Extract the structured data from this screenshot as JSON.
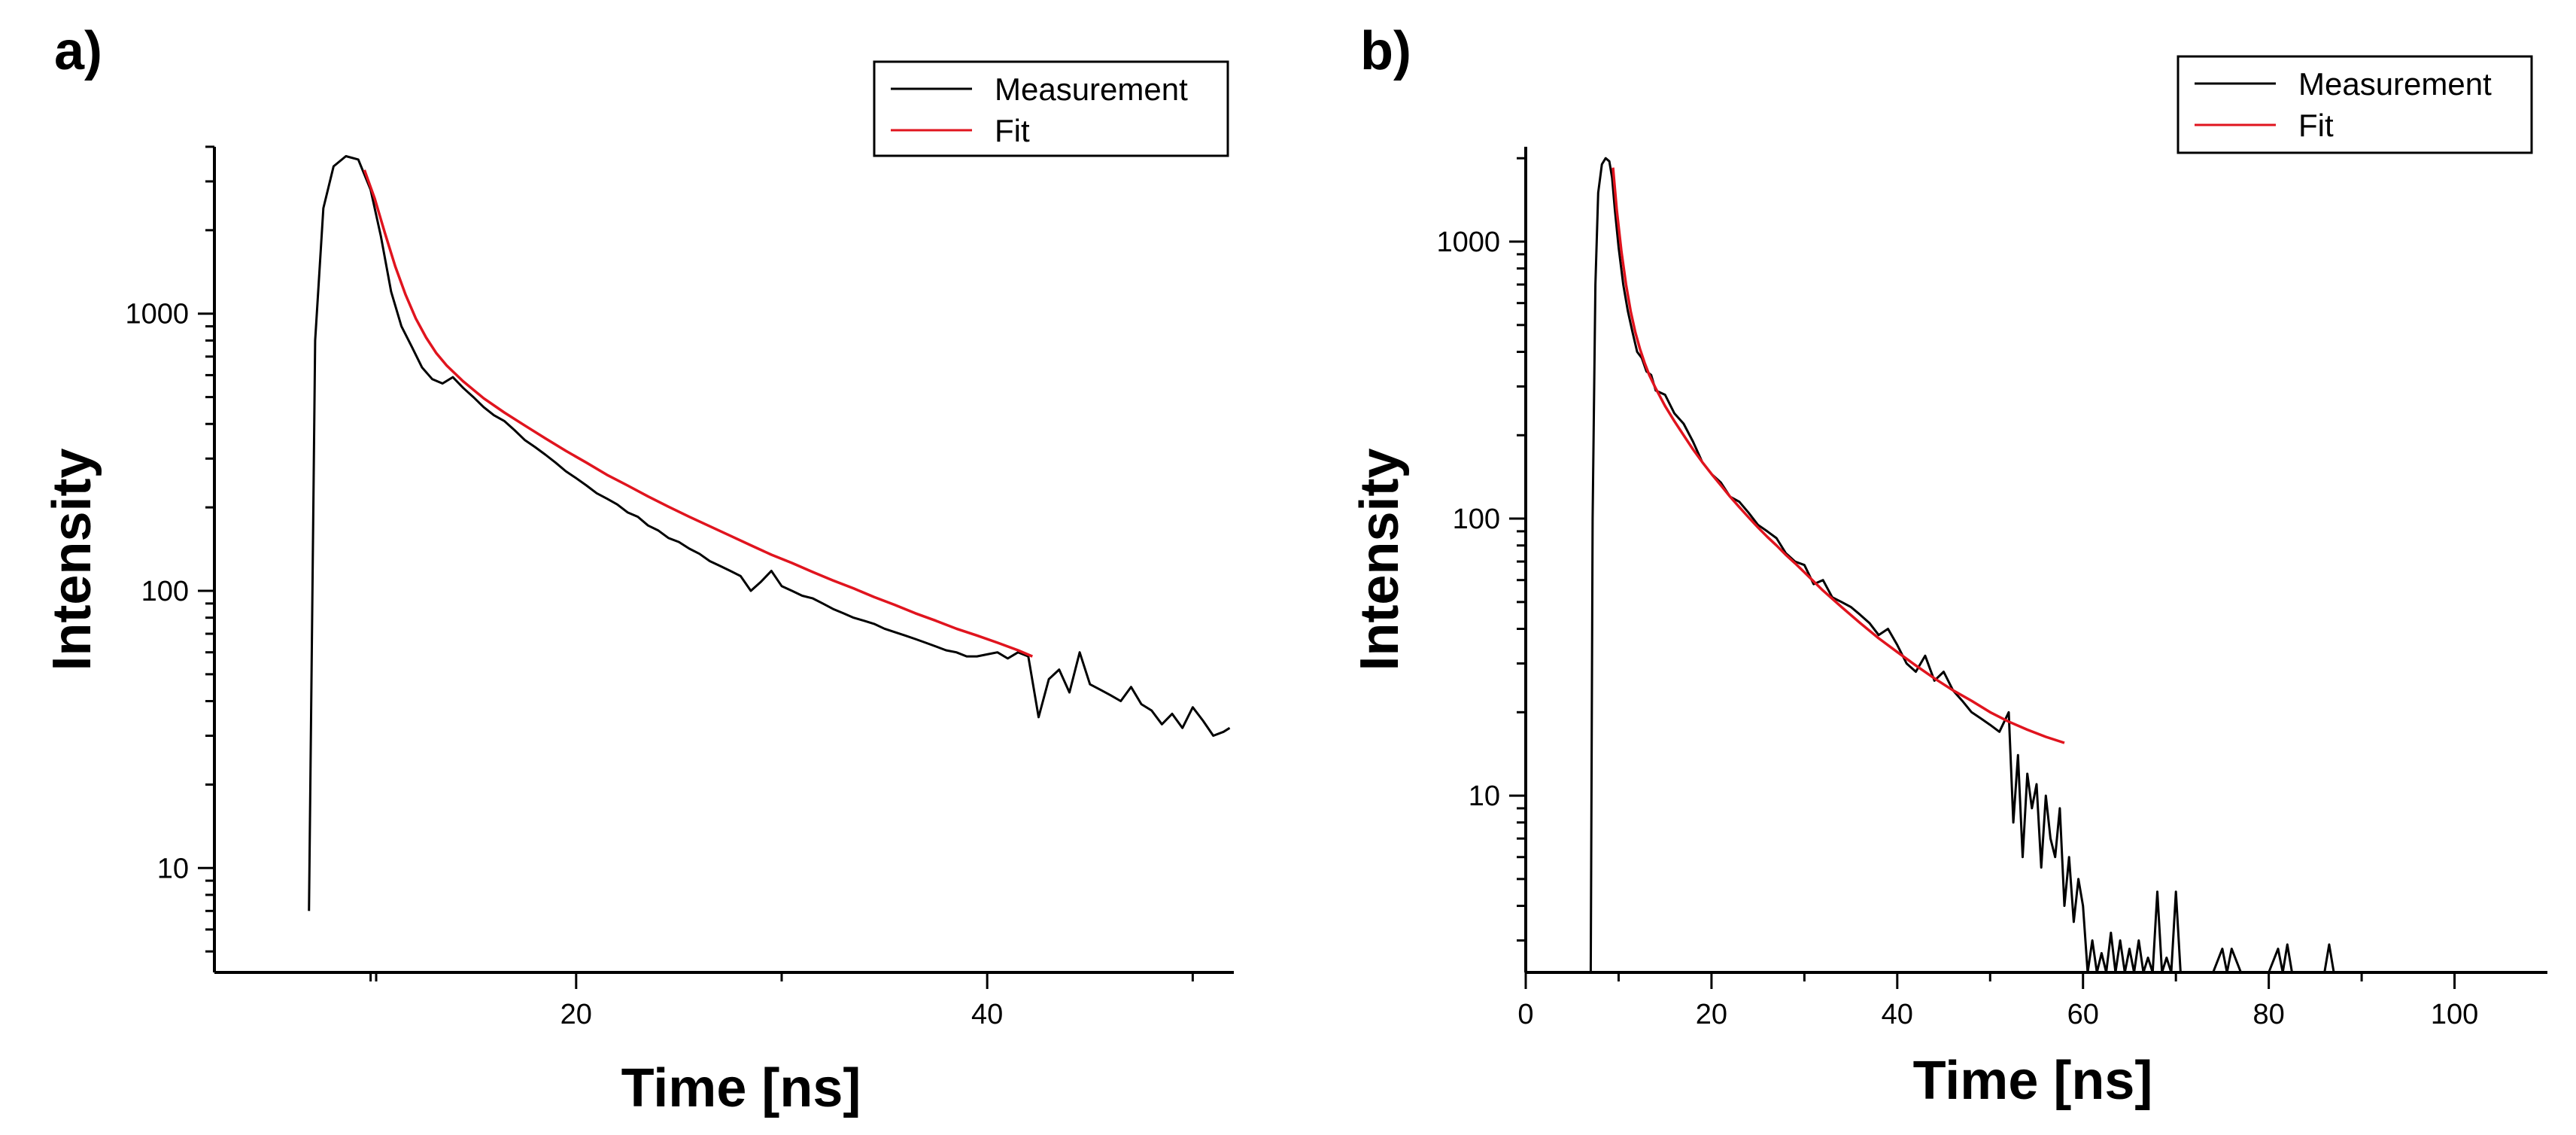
{
  "chart_data": [
    {
      "type": "line",
      "panel_label": "a)",
      "xlabel": "Time [ns]",
      "ylabel": "Intensity",
      "xscale": "linear",
      "yscale": "log",
      "xlim": [
        2.4,
        52
      ],
      "ylim": [
        4.2,
        4000
      ],
      "xticks_major": [
        20,
        40
      ],
      "xticks_minor": [
        10,
        30,
        50
      ],
      "yticks": [
        10,
        100,
        1000
      ],
      "legend": {
        "position": "top-right",
        "entries": [
          "Measurement",
          "Fit"
        ]
      },
      "series": [
        {
          "name": "Measurement",
          "color": "#000000",
          "x": [
            7.0,
            7.3,
            7.7,
            8.2,
            8.8,
            9.4,
            10.0,
            10.5,
            11.0,
            11.5,
            12.0,
            12.5,
            13.0,
            13.5,
            14.0,
            14.5,
            15.0,
            15.5,
            16.0,
            16.5,
            17.0,
            17.5,
            18.0,
            18.5,
            19.0,
            19.5,
            20.0,
            20.5,
            21.0,
            21.5,
            22.0,
            22.5,
            23.0,
            23.5,
            24.0,
            24.5,
            25.0,
            25.5,
            26.0,
            26.5,
            27.0,
            27.5,
            28.0,
            28.5,
            29.0,
            29.5,
            30.0,
            30.5,
            31.0,
            31.5,
            32.0,
            32.5,
            33.0,
            33.5,
            34.0,
            34.5,
            35.0,
            35.5,
            36.0,
            36.5,
            37.0,
            37.5,
            38.0,
            38.5,
            39.0,
            39.5,
            40.0,
            40.5,
            41.0,
            41.5,
            42.0,
            42.5,
            43.0,
            43.5,
            44.0,
            44.5,
            45.0,
            45.5,
            46.0,
            46.5,
            47.0,
            47.5,
            48.0,
            48.5,
            49.0,
            49.5,
            50.0,
            50.5,
            51.0,
            51.5,
            51.8
          ],
          "y": [
            7,
            800,
            2400,
            3400,
            3700,
            3600,
            2800,
            1900,
            1200,
            900,
            760,
            640,
            580,
            560,
            590,
            540,
            500,
            460,
            430,
            410,
            380,
            350,
            330,
            310,
            290,
            270,
            255,
            240,
            225,
            215,
            205,
            192,
            185,
            172,
            165,
            155,
            150,
            142,
            136,
            128,
            123,
            118,
            113,
            100,
            108,
            118,
            104,
            100,
            96,
            94,
            90,
            86,
            83,
            80,
            78,
            76,
            73,
            71,
            69,
            67,
            65,
            63,
            61,
            60,
            58,
            58,
            59,
            60,
            57,
            60,
            58,
            35,
            48,
            52,
            43,
            60,
            46,
            44,
            42,
            40,
            45,
            39,
            37,
            33,
            36,
            32,
            38,
            34,
            30,
            31,
            32
          ]
        },
        {
          "name": "Fit",
          "color": "#e0141e",
          "x": [
            9.7,
            10.2,
            10.7,
            11.2,
            11.7,
            12.2,
            12.7,
            13.2,
            13.7,
            14.5,
            15.5,
            16.5,
            17.5,
            18.5,
            19.5,
            20.5,
            21.5,
            22.5,
            23.5,
            24.5,
            25.5,
            26.5,
            27.5,
            28.5,
            29.5,
            30.5,
            31.5,
            32.5,
            33.5,
            34.5,
            35.5,
            36.5,
            37.5,
            38.5,
            39.5,
            40.5,
            41.5,
            42.2
          ],
          "y": [
            3300,
            2600,
            1950,
            1480,
            1170,
            960,
            820,
            720,
            650,
            570,
            495,
            440,
            395,
            355,
            320,
            290,
            262,
            240,
            219,
            201,
            185,
            171,
            158,
            146,
            135,
            126,
            117,
            109,
            102,
            95,
            89,
            83,
            78,
            73,
            69,
            65,
            61,
            58
          ]
        }
      ]
    },
    {
      "type": "line",
      "panel_label": "b)",
      "xlabel": "Time [ns]",
      "ylabel": "Intensity",
      "xscale": "linear",
      "yscale": "log",
      "xlim": [
        0,
        110
      ],
      "ylim": [
        2.3,
        2200
      ],
      "xticks_major": [
        0,
        20,
        40,
        60,
        80,
        100
      ],
      "xticks_minor": [
        10,
        30,
        50,
        70,
        90
      ],
      "yticks": [
        10,
        100,
        1000
      ],
      "legend": {
        "position": "top-right",
        "entries": [
          "Measurement",
          "Fit"
        ]
      },
      "series": [
        {
          "name": "Measurement",
          "color": "#000000",
          "x": [
            7.0,
            7.2,
            7.5,
            7.8,
            8.2,
            8.6,
            9.0,
            9.3,
            9.6,
            10.0,
            10.5,
            11.0,
            11.5,
            12.0,
            12.5,
            13.0,
            13.5,
            14.0,
            15.0,
            16.0,
            17.0,
            18.0,
            19.0,
            20.0,
            21.0,
            22.0,
            23.0,
            24.0,
            25.0,
            26.0,
            27.0,
            28.0,
            29.0,
            30.0,
            31.0,
            32.0,
            33.0,
            34.0,
            35.0,
            36.0,
            37.0,
            38.0,
            39.0,
            40.0,
            41.0,
            42.0,
            43.0,
            44.0,
            45.0,
            46.0,
            47.0,
            48.0,
            49.0,
            50.0,
            51.0,
            52.0,
            52.5,
            53.0,
            53.5,
            54.0,
            54.5,
            55.0,
            55.5,
            56.0,
            56.5,
            57.0,
            57.5,
            58.0,
            58.5,
            59.0,
            59.5,
            60.0,
            60.5,
            61.0,
            61.5,
            62.0,
            62.5,
            63.0,
            63.5,
            64.0,
            64.5,
            65.0,
            65.5,
            66.0,
            66.5,
            67.0,
            67.5,
            68.0,
            68.5,
            69.0,
            69.5,
            70.0,
            70.5,
            71.0,
            72.0,
            74.0,
            75.0,
            75.5,
            76.0,
            77.0,
            80.0,
            81.0,
            81.5,
            82.0,
            82.5,
            83.0,
            86.0,
            86.5,
            87.0,
            87.5,
            88.0
          ],
          "y": [
            2.3,
            100,
            700,
            1500,
            1900,
            2000,
            1950,
            1700,
            1300,
            950,
            700,
            560,
            470,
            400,
            380,
            340,
            330,
            290,
            280,
            240,
            220,
            190,
            160,
            145,
            135,
            120,
            115,
            105,
            95,
            90,
            85,
            75,
            70,
            68,
            58,
            60,
            52,
            50,
            48,
            45,
            42,
            38,
            40,
            35,
            30,
            28,
            32,
            26,
            28,
            24,
            22,
            20,
            19,
            18,
            17,
            20,
            8,
            14,
            6,
            12,
            9,
            11,
            5.5,
            10,
            7,
            6,
            9,
            4,
            6,
            3.5,
            5,
            4,
            2.3,
            3,
            2.3,
            2.7,
            2.3,
            3.2,
            2.3,
            3,
            2.3,
            2.8,
            2.3,
            3,
            2.3,
            2.6,
            2.3,
            4.5,
            2.3,
            2.6,
            2.3,
            4.5,
            2.3,
            2.3,
            2.3,
            2.3,
            2.8,
            2.3,
            2.8,
            2.3,
            2.3,
            2.8,
            2.3,
            2.9,
            2.3,
            2.3,
            2.3,
            2.9,
            2.3,
            2.3,
            2.3
          ]
        },
        {
          "name": "Fit",
          "color": "#e0141e",
          "x": [
            9.4,
            9.8,
            10.3,
            10.8,
            11.3,
            11.8,
            12.3,
            12.8,
            13.3,
            14.0,
            15.0,
            16.0,
            17.0,
            18.0,
            19.0,
            20.0,
            21.0,
            22.0,
            23.0,
            24.0,
            25.0,
            26.0,
            27.0,
            28.0,
            29.0,
            30.0,
            32.0,
            34.0,
            36.0,
            38.0,
            40.0,
            42.0,
            44.0,
            46.0,
            48.0,
            50.0,
            52.0,
            54.0,
            56.0,
            58.0
          ],
          "y": [
            1850,
            1300,
            920,
            700,
            560,
            470,
            410,
            365,
            330,
            295,
            255,
            225,
            200,
            178,
            160,
            145,
            132,
            120,
            110,
            101,
            93,
            86,
            80,
            74,
            69,
            64,
            55,
            48,
            42,
            37,
            33,
            29.5,
            26.5,
            24,
            22,
            20,
            18.5,
            17.3,
            16.3,
            15.5
          ]
        }
      ]
    }
  ]
}
